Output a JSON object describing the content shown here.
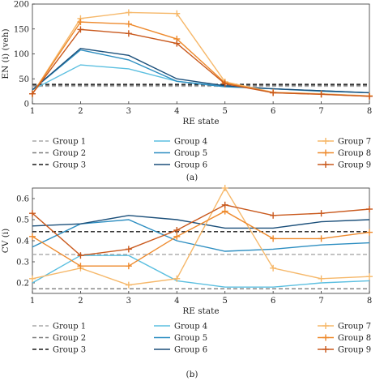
{
  "colors": {
    "group1": "#a9a9a9",
    "group2": "#7f7f7f",
    "group3": "#1a1a1a",
    "group4": "#5bbfe0",
    "group5": "#2d8ec1",
    "group6": "#1b4f7a",
    "group7": "#f6b86a",
    "group8": "#ee8a2d",
    "group9": "#c9591d"
  },
  "chart_data": [
    {
      "type": "line",
      "panel_label": "(a)",
      "xlabel": "RE state",
      "ylabel": "EN (i) (veh)",
      "x": [
        1,
        2,
        3,
        4,
        5,
        6,
        7,
        8
      ],
      "xticks": [
        "1",
        "2",
        "3",
        "4",
        "5",
        "6",
        "7",
        "8"
      ],
      "xlim": [
        1,
        8
      ],
      "ylim": [
        0,
        200
      ],
      "yticks": [
        "0",
        "50",
        "100",
        "150",
        "200"
      ],
      "legend_placement": "below",
      "series": [
        {
          "name": "Group 1",
          "style": "dashed",
          "color_key": "group1",
          "marker": "none",
          "values": [
            35,
            35,
            35,
            35,
            35,
            35,
            35,
            35
          ]
        },
        {
          "name": "Group 2",
          "style": "dashed",
          "color_key": "group2",
          "marker": "none",
          "values": [
            37,
            37,
            37,
            37,
            37,
            37,
            37,
            37
          ]
        },
        {
          "name": "Group 3",
          "style": "dashed",
          "color_key": "group3",
          "marker": "none",
          "values": [
            39,
            39,
            39,
            39,
            39,
            39,
            39,
            39
          ]
        },
        {
          "name": "Group 4",
          "style": "solid",
          "color_key": "group4",
          "marker": "none",
          "values": [
            28,
            78,
            70,
            45,
            35,
            30,
            25,
            22
          ]
        },
        {
          "name": "Group 5",
          "style": "solid",
          "color_key": "group5",
          "marker": "none",
          "values": [
            28,
            108,
            88,
            45,
            34,
            30,
            26,
            22
          ]
        },
        {
          "name": "Group 6",
          "style": "solid",
          "color_key": "group6",
          "marker": "none",
          "values": [
            28,
            111,
            97,
            50,
            36,
            30,
            26,
            22
          ]
        },
        {
          "name": "Group 7",
          "style": "solid",
          "color_key": "group7",
          "marker": "plus",
          "values": [
            20,
            171,
            183,
            181,
            44,
            23,
            20,
            16
          ]
        },
        {
          "name": "Group 8",
          "style": "solid",
          "color_key": "group8",
          "marker": "plus",
          "values": [
            20,
            164,
            160,
            130,
            42,
            22,
            19,
            15
          ]
        },
        {
          "name": "Group 9",
          "style": "solid",
          "color_key": "group9",
          "marker": "plus",
          "values": [
            20,
            149,
            141,
            121,
            40,
            22,
            19,
            15
          ]
        }
      ]
    },
    {
      "type": "line",
      "panel_label": "(b)",
      "xlabel": "RE state",
      "ylabel": "CV (i)",
      "x": [
        1,
        2,
        3,
        4,
        5,
        6,
        7,
        8
      ],
      "xticks": [
        "1",
        "2",
        "3",
        "4",
        "5",
        "6",
        "7",
        "8"
      ],
      "xlim": [
        1,
        8
      ],
      "ylim": [
        0.15,
        0.65
      ],
      "yticks": [
        "0.2",
        "0.3",
        "0.4",
        "0.5",
        "0.6"
      ],
      "legend_placement": "below",
      "series": [
        {
          "name": "Group 1",
          "style": "dashed",
          "color_key": "group1",
          "marker": "none",
          "values": [
            0.335,
            0.335,
            0.335,
            0.335,
            0.335,
            0.335,
            0.335,
            0.335
          ]
        },
        {
          "name": "Group 2",
          "style": "dashed",
          "color_key": "group2",
          "marker": "none",
          "values": [
            0.172,
            0.172,
            0.172,
            0.172,
            0.172,
            0.172,
            0.172,
            0.172
          ]
        },
        {
          "name": "Group 3",
          "style": "dashed",
          "color_key": "group3",
          "marker": "none",
          "values": [
            0.443,
            0.443,
            0.443,
            0.443,
            0.443,
            0.443,
            0.443,
            0.443
          ]
        },
        {
          "name": "Group 4",
          "style": "solid",
          "color_key": "group4",
          "marker": "none",
          "values": [
            0.2,
            0.33,
            0.33,
            0.21,
            0.18,
            0.18,
            0.2,
            0.21
          ]
        },
        {
          "name": "Group 5",
          "style": "solid",
          "color_key": "group5",
          "marker": "none",
          "values": [
            0.37,
            0.48,
            0.5,
            0.4,
            0.35,
            0.36,
            0.38,
            0.39
          ]
        },
        {
          "name": "Group 6",
          "style": "solid",
          "color_key": "group6",
          "marker": "none",
          "values": [
            0.47,
            0.48,
            0.52,
            0.5,
            0.46,
            0.46,
            0.49,
            0.5
          ]
        },
        {
          "name": "Group 7",
          "style": "solid",
          "color_key": "group7",
          "marker": "plus",
          "values": [
            0.22,
            0.27,
            0.19,
            0.22,
            0.65,
            0.27,
            0.22,
            0.23
          ]
        },
        {
          "name": "Group 8",
          "style": "solid",
          "color_key": "group8",
          "marker": "plus",
          "values": [
            0.42,
            0.28,
            0.28,
            0.42,
            0.54,
            0.41,
            0.41,
            0.44
          ]
        },
        {
          "name": "Group 9",
          "style": "solid",
          "color_key": "group9",
          "marker": "plus",
          "values": [
            0.53,
            0.33,
            0.36,
            0.45,
            0.57,
            0.52,
            0.53,
            0.55
          ]
        }
      ]
    }
  ]
}
